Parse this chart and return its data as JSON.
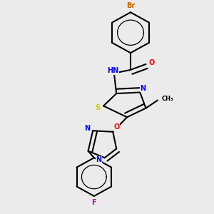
{
  "background_color": "#ebebeb",
  "atom_colors": {
    "C": "#000000",
    "N": "#0000ff",
    "O": "#ff0000",
    "S": "#cccc00",
    "Br": "#cc6600",
    "F": "#cc00cc",
    "H": "#000000"
  },
  "bond_color": "#000000",
  "bond_width": 1.5
}
